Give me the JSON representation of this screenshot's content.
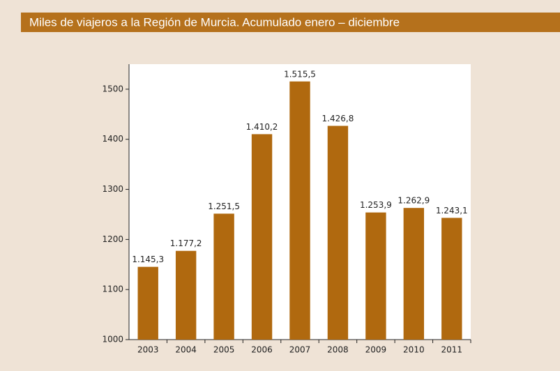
{
  "chart_data": {
    "type": "bar",
    "title": "Miles de viajeros a la Región de Murcia. Acumulado enero – diciembre",
    "categories": [
      "2003",
      "2004",
      "2005",
      "2006",
      "2007",
      "2008",
      "2009",
      "2010",
      "2011"
    ],
    "values": [
      1145.3,
      1177.2,
      1251.5,
      1410.2,
      1515.5,
      1426.8,
      1253.9,
      1262.9,
      1243.1
    ],
    "value_labels": [
      "1.145,3",
      "1.177,2",
      "1.251,5",
      "1.410,2",
      "1.515,5",
      "1.426,8",
      "1.253,9",
      "1.262,9",
      "1.243,1"
    ],
    "color": "#b0690f",
    "ylim": [
      1000,
      1550
    ],
    "yticks": [
      1000,
      1100,
      1200,
      1300,
      1400,
      1500
    ],
    "grid": false
  }
}
